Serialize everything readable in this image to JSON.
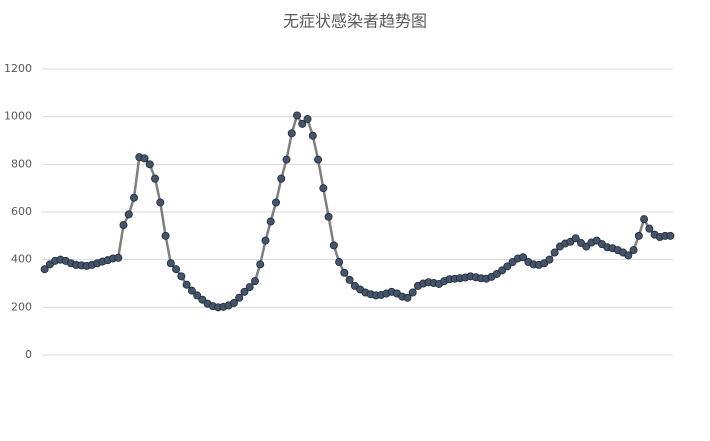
{
  "chart_data": {
    "type": "line",
    "title": "无症状感染者趋势图",
    "categories": [
      null,
      null,
      null,
      null,
      null,
      null,
      null,
      null,
      null,
      null,
      null,
      null,
      null,
      null,
      null,
      null,
      null,
      null,
      null,
      null,
      null,
      null,
      null,
      null,
      null,
      null,
      null,
      null,
      null,
      null,
      null,
      null,
      null,
      null,
      null,
      null,
      null,
      null,
      null,
      null,
      null,
      null,
      null,
      null,
      null,
      null,
      null,
      null,
      null,
      null,
      null,
      null,
      null,
      null,
      null,
      null,
      null,
      null,
      null,
      null,
      null,
      null,
      null,
      null,
      null,
      null,
      null,
      null,
      null,
      null,
      null,
      null,
      null,
      null,
      null,
      null,
      null,
      null,
      null,
      null,
      null,
      null,
      null,
      null,
      null,
      null,
      null,
      null,
      null,
      null,
      null,
      null,
      null,
      null,
      null,
      null,
      null,
      null,
      null,
      null,
      null,
      null,
      null,
      null,
      null,
      null,
      null,
      null,
      null,
      null,
      null,
      null,
      null,
      null,
      null,
      null,
      null,
      null,
      null,
      null
    ],
    "values": [
      360,
      380,
      395,
      400,
      395,
      385,
      378,
      376,
      374,
      378,
      385,
      392,
      398,
      405,
      408,
      545,
      590,
      660,
      830,
      825,
      800,
      740,
      640,
      500,
      385,
      360,
      330,
      295,
      270,
      250,
      232,
      215,
      205,
      200,
      202,
      208,
      218,
      240,
      265,
      285,
      310,
      380,
      480,
      560,
      640,
      740,
      820,
      930,
      1005,
      970,
      990,
      920,
      820,
      700,
      580,
      460,
      390,
      345,
      315,
      290,
      275,
      262,
      255,
      250,
      252,
      258,
      265,
      258,
      245,
      240,
      262,
      290,
      300,
      305,
      302,
      298,
      310,
      318,
      320,
      322,
      325,
      330,
      326,
      322,
      320,
      328,
      340,
      355,
      372,
      390,
      405,
      410,
      390,
      380,
      378,
      385,
      400,
      430,
      455,
      468,
      475,
      490,
      470,
      455,
      472,
      480,
      465,
      452,
      448,
      440,
      430,
      418,
      440,
      500,
      570,
      530,
      505,
      495,
      500,
      500
    ],
    "color": "#7f7f7f",
    "marker_color": "#44546a",
    "ylim": [
      0,
      1200
    ],
    "yticks": [
      0,
      200,
      400,
      600,
      800,
      1000,
      1200
    ],
    "grid": true
  }
}
